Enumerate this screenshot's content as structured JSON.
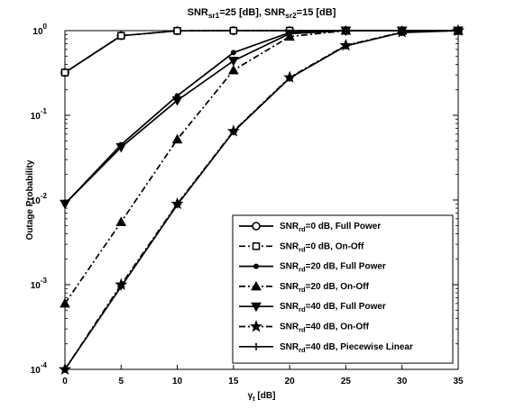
{
  "chart_data": {
    "type": "line",
    "title": {
      "main": "SNR",
      "parts": [
        {
          "t": "SNR"
        },
        {
          "t": "sr1",
          "sub": true
        },
        {
          "t": "=25 [dB], SNR"
        },
        {
          "t": "sr2",
          "sub": true
        },
        {
          "t": "=15 [dB]"
        }
      ]
    },
    "xlabel": {
      "parts": [
        {
          "t": "γ"
        },
        {
          "t": "t",
          "sub": true
        },
        {
          "t": " [dB]"
        }
      ]
    },
    "ylabel": "Outage Probability",
    "xlim": [
      0,
      35
    ],
    "ylim": [
      0.0001,
      1
    ],
    "yscale": "log",
    "grid": false,
    "legend_position": "bottom-right",
    "x_ticks": [
      0,
      5,
      10,
      15,
      20,
      25,
      30,
      35
    ],
    "x_tick_labels": [
      "0",
      "5",
      "10",
      "15",
      "20",
      "25",
      "30",
      "35"
    ],
    "y_ticks": [
      {
        "value": 0.0001,
        "base": "10",
        "exp": "-4"
      },
      {
        "value": 0.001,
        "base": "10",
        "exp": "-3"
      },
      {
        "value": 0.01,
        "base": "10",
        "exp": "-2"
      },
      {
        "value": 0.1,
        "base": "10",
        "exp": "-1"
      },
      {
        "value": 1,
        "base": "10",
        "exp": "0"
      }
    ],
    "x": [
      0,
      5,
      10,
      15,
      20,
      25,
      30,
      35
    ],
    "series": [
      {
        "name": {
          "parts": [
            {
              "t": "SNR"
            },
            {
              "t": "rd",
              "sub": true
            },
            {
              "t": "=0 dB, Full Power"
            }
          ]
        },
        "marker": "circle",
        "dash": "solid",
        "values": [
          0.32,
          0.87,
          0.995,
          1,
          1,
          1,
          1,
          1
        ]
      },
      {
        "name": {
          "parts": [
            {
              "t": "SNR"
            },
            {
              "t": "rd",
              "sub": true
            },
            {
              "t": "=0 dB, On-Off"
            }
          ]
        },
        "marker": "square",
        "dash": "dashdot",
        "values": [
          0.32,
          0.87,
          0.995,
          1,
          1,
          1,
          1,
          1
        ]
      },
      {
        "name": {
          "parts": [
            {
              "t": "SNR"
            },
            {
              "t": "rd",
              "sub": true
            },
            {
              "t": "=20 dB, Full Power"
            }
          ]
        },
        "marker": "dot",
        "dash": "solid",
        "values": [
          0.009,
          0.045,
          0.17,
          0.55,
          0.95,
          1,
          1,
          1
        ]
      },
      {
        "name": {
          "parts": [
            {
              "t": "SNR"
            },
            {
              "t": "rd",
              "sub": true
            },
            {
              "t": "=20 dB, On-Off"
            }
          ]
        },
        "marker": "triangle",
        "dash": "dashdot",
        "values": [
          0.0006,
          0.0055,
          0.052,
          0.34,
          0.85,
          1,
          1,
          1
        ]
      },
      {
        "name": {
          "parts": [
            {
              "t": "SNR"
            },
            {
              "t": "rd",
              "sub": true
            },
            {
              "t": "=40 dB, Full Power"
            }
          ]
        },
        "marker": "triangle-down",
        "dash": "solid",
        "values": [
          0.009,
          0.042,
          0.15,
          0.44,
          0.92,
          1,
          1,
          1
        ]
      },
      {
        "name": {
          "parts": [
            {
              "t": "SNR"
            },
            {
              "t": "rd",
              "sub": true
            },
            {
              "t": "=40 dB, On-Off"
            }
          ]
        },
        "marker": "star",
        "dash": "dashdot",
        "values": [
          0.0001,
          0.001,
          0.009,
          0.065,
          0.28,
          0.67,
          0.96,
          1
        ]
      },
      {
        "name": {
          "parts": [
            {
              "t": "SNR"
            },
            {
              "t": "rd",
              "sub": true
            },
            {
              "t": "=40 dB, Piecewise Linear"
            }
          ]
        },
        "marker": "plus",
        "dash": "solid",
        "values": [
          0.0001,
          0.00095,
          0.0088,
          0.064,
          0.275,
          0.66,
          0.95,
          1
        ]
      }
    ]
  }
}
